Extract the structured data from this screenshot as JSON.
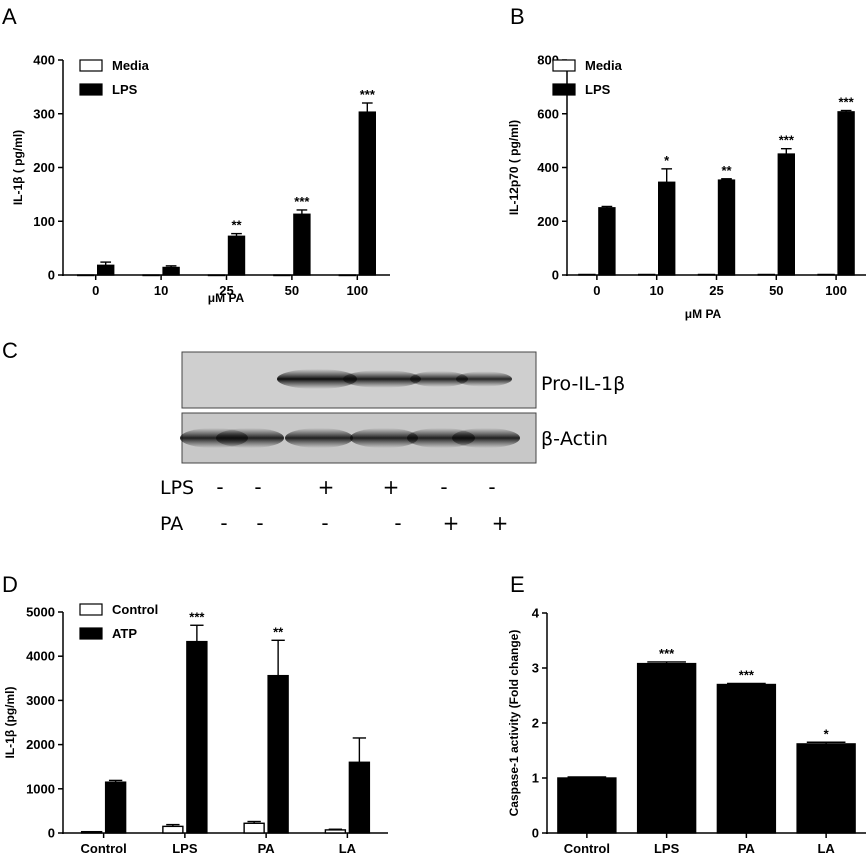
{
  "panel_labels": [
    "A",
    "B",
    "C",
    "D",
    "E"
  ],
  "blot": {
    "bands": [
      "Pro-IL-1β",
      "β-Actin"
    ],
    "row_labels": [
      "LPS",
      "PA"
    ],
    "lps_signs": [
      "-",
      "-",
      "+",
      "+",
      "-",
      "-"
    ],
    "pa_signs": [
      "-",
      "-",
      "-",
      "-",
      "+",
      "+"
    ],
    "pro_il1b_intensity": [
      0,
      0,
      1,
      0.85,
      0.75,
      0.7
    ],
    "actin_intensity": [
      1,
      1,
      1,
      1,
      1,
      1
    ]
  },
  "chart_data": [
    {
      "panel": "A",
      "type": "bar",
      "categories": [
        "0",
        "10",
        "25",
        "50",
        "100"
      ],
      "xlabel": "μM PA",
      "ylabel": "IL-1β ( pg/ml)",
      "ylim": [
        0,
        400
      ],
      "yticks": [
        0,
        100,
        200,
        300,
        400
      ],
      "legend_position": "top-left",
      "series": [
        {
          "name": "Media",
          "color": "#ffffff",
          "values": [
            0,
            0,
            0,
            0,
            0
          ],
          "errors": [
            0,
            0,
            0,
            0,
            0
          ]
        },
        {
          "name": "LPS",
          "color": "#000000",
          "values": [
            18,
            14,
            72,
            113,
            303
          ],
          "errors": [
            6,
            3,
            5,
            8,
            17
          ]
        }
      ],
      "annotations": [
        "",
        "",
        "**",
        "***",
        "***"
      ]
    },
    {
      "panel": "B",
      "type": "bar",
      "categories": [
        "0",
        "10",
        "25",
        "50",
        "100"
      ],
      "xlabel": "μM PA",
      "ylabel": "IL-12p70 ( pg/ml)",
      "ylim": [
        0,
        800
      ],
      "yticks": [
        0,
        200,
        400,
        600,
        800
      ],
      "legend_position": "top-left",
      "series": [
        {
          "name": "Media",
          "color": "#ffffff",
          "values": [
            2,
            2,
            2,
            2,
            2
          ],
          "errors": [
            0,
            0,
            0,
            0,
            0
          ]
        },
        {
          "name": "LPS",
          "color": "#000000",
          "values": [
            250,
            345,
            353,
            450,
            607
          ],
          "errors": [
            5,
            50,
            5,
            20,
            5
          ]
        }
      ],
      "annotations": [
        "",
        "*",
        "**",
        "***",
        "***"
      ]
    },
    {
      "panel": "D",
      "type": "bar",
      "categories": [
        "Control",
        "LPS",
        "PA",
        "LA"
      ],
      "xlabel": "",
      "ylabel": "IL-1β (pg/ml)",
      "ylim": [
        0,
        5000
      ],
      "yticks": [
        0,
        1000,
        2000,
        3000,
        4000,
        5000
      ],
      "legend_position": "top-left",
      "series": [
        {
          "name": "Control",
          "color": "#ffffff",
          "values": [
            30,
            150,
            220,
            70
          ],
          "errors": [
            0,
            40,
            40,
            15
          ]
        },
        {
          "name": "ATP",
          "color": "#000000",
          "values": [
            1150,
            4330,
            3560,
            1600
          ],
          "errors": [
            40,
            370,
            800,
            550
          ]
        }
      ],
      "annotations": [
        "",
        "***",
        "**",
        ""
      ]
    },
    {
      "panel": "E",
      "type": "bar",
      "categories": [
        "Control",
        "LPS",
        "PA",
        "LA"
      ],
      "xlabel": "",
      "ylabel": "Caspase-1 activity (Fold change)",
      "ylim": [
        0,
        4
      ],
      "yticks": [
        0,
        1,
        2,
        3,
        4
      ],
      "series": [
        {
          "name": "",
          "color": "#000000",
          "values": [
            1.0,
            3.08,
            2.7,
            1.62
          ],
          "errors": [
            0.02,
            0.03,
            0.02,
            0.03
          ]
        }
      ],
      "annotations": [
        "",
        "***",
        "***",
        "*"
      ]
    }
  ]
}
